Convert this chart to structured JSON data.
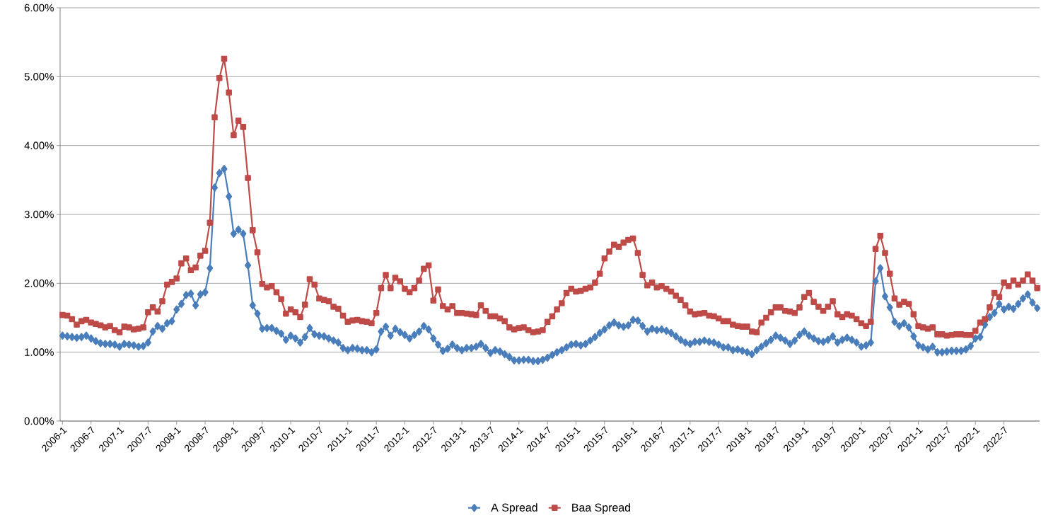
{
  "chart_data": {
    "type": "line",
    "categories": [
      "2006-1",
      null,
      null,
      null,
      null,
      null,
      "2006-7",
      null,
      null,
      null,
      null,
      null,
      "2007-1",
      null,
      null,
      null,
      null,
      null,
      "2007-7",
      null,
      null,
      null,
      null,
      null,
      "2008-1",
      null,
      null,
      null,
      null,
      null,
      "2008-7",
      null,
      null,
      null,
      null,
      null,
      "2009-1",
      null,
      null,
      null,
      null,
      null,
      "2009-7",
      null,
      null,
      null,
      null,
      null,
      "2010-1",
      null,
      null,
      null,
      null,
      null,
      "2010-7",
      null,
      null,
      null,
      null,
      null,
      "2011-1",
      null,
      null,
      null,
      null,
      null,
      "2011-7",
      null,
      null,
      null,
      null,
      null,
      "2012-1",
      null,
      null,
      null,
      null,
      null,
      "2012-7",
      null,
      null,
      null,
      null,
      null,
      "2013-1",
      null,
      null,
      null,
      null,
      null,
      "2013-7",
      null,
      null,
      null,
      null,
      null,
      "2014-1",
      null,
      null,
      null,
      null,
      null,
      "2014-7",
      null,
      null,
      null,
      null,
      null,
      "2015-1",
      null,
      null,
      null,
      null,
      null,
      "2015-7",
      null,
      null,
      null,
      null,
      null,
      "2016-1",
      null,
      null,
      null,
      null,
      null,
      "2016-7",
      null,
      null,
      null,
      null,
      null,
      "2017-1",
      null,
      null,
      null,
      null,
      null,
      "2017-7",
      null,
      null,
      null,
      null,
      null,
      "2018-1",
      null,
      null,
      null,
      null,
      null,
      "2018-7",
      null,
      null,
      null,
      null,
      null,
      "2019-1",
      null,
      null,
      null,
      null,
      null,
      "2019-7",
      null,
      null,
      null,
      null,
      null,
      "2020-1",
      null,
      null,
      null,
      null,
      null,
      "2020-7",
      null,
      null,
      null,
      null,
      null,
      "2021-1",
      null,
      null,
      null,
      null,
      null,
      "2021-7",
      null,
      null,
      null,
      null,
      null,
      "2022-1",
      null,
      null,
      null,
      null,
      null,
      "2022-7",
      null,
      null,
      null,
      null,
      null,
      null,
      null
    ],
    "series": [
      {
        "name": "A Spread",
        "color": "#4a7ebb",
        "marker": "diamond",
        "values": [
          1.24,
          1.23,
          1.22,
          1.21,
          1.22,
          1.24,
          1.2,
          1.16,
          1.13,
          1.12,
          1.12,
          1.11,
          1.08,
          1.12,
          1.11,
          1.1,
          1.08,
          1.09,
          1.14,
          1.3,
          1.38,
          1.34,
          1.42,
          1.45,
          1.62,
          1.7,
          1.83,
          1.85,
          1.68,
          1.84,
          1.87,
          2.22,
          3.39,
          3.6,
          3.66,
          3.26,
          2.72,
          2.78,
          2.72,
          2.26,
          1.68,
          1.56,
          1.34,
          1.35,
          1.35,
          1.31,
          1.27,
          1.18,
          1.24,
          1.2,
          1.14,
          1.22,
          1.35,
          1.26,
          1.24,
          1.23,
          1.2,
          1.17,
          1.14,
          1.06,
          1.03,
          1.06,
          1.05,
          1.03,
          1.03,
          1.0,
          1.04,
          1.3,
          1.37,
          1.24,
          1.34,
          1.29,
          1.25,
          1.2,
          1.25,
          1.3,
          1.38,
          1.33,
          1.2,
          1.11,
          1.02,
          1.05,
          1.11,
          1.06,
          1.03,
          1.06,
          1.06,
          1.08,
          1.12,
          1.06,
          0.99,
          1.03,
          1.01,
          0.97,
          0.93,
          0.88,
          0.88,
          0.89,
          0.89,
          0.87,
          0.87,
          0.89,
          0.92,
          0.96,
          1.0,
          1.03,
          1.07,
          1.11,
          1.12,
          1.1,
          1.12,
          1.17,
          1.22,
          1.28,
          1.33,
          1.39,
          1.43,
          1.39,
          1.37,
          1.39,
          1.47,
          1.46,
          1.38,
          1.3,
          1.34,
          1.32,
          1.33,
          1.31,
          1.28,
          1.23,
          1.18,
          1.14,
          1.12,
          1.15,
          1.15,
          1.17,
          1.15,
          1.14,
          1.11,
          1.07,
          1.07,
          1.03,
          1.04,
          1.02,
          1.0,
          0.97,
          1.03,
          1.08,
          1.13,
          1.18,
          1.24,
          1.21,
          1.17,
          1.12,
          1.17,
          1.25,
          1.3,
          1.24,
          1.2,
          1.16,
          1.15,
          1.18,
          1.23,
          1.14,
          1.18,
          1.21,
          1.18,
          1.14,
          1.08,
          1.1,
          1.14,
          2.03,
          2.22,
          1.81,
          1.65,
          1.44,
          1.38,
          1.42,
          1.36,
          1.23,
          1.1,
          1.07,
          1.04,
          1.08,
          1.0,
          1.0,
          1.01,
          1.02,
          1.02,
          1.02,
          1.04,
          1.09,
          1.2,
          1.22,
          1.4,
          1.51,
          1.57,
          1.7,
          1.62,
          1.66,
          1.63,
          1.7,
          1.78,
          1.84,
          1.72,
          1.64
        ]
      },
      {
        "name": "Baa Spread",
        "color": "#be4b48",
        "marker": "square",
        "values": [
          1.54,
          1.53,
          1.48,
          1.4,
          1.45,
          1.47,
          1.43,
          1.41,
          1.39,
          1.36,
          1.38,
          1.32,
          1.29,
          1.37,
          1.36,
          1.33,
          1.34,
          1.36,
          1.58,
          1.65,
          1.59,
          1.74,
          1.98,
          2.02,
          2.07,
          2.29,
          2.36,
          2.19,
          2.23,
          2.4,
          2.47,
          2.88,
          4.41,
          4.98,
          5.26,
          4.77,
          4.15,
          4.36,
          4.27,
          3.53,
          2.77,
          2.45,
          1.99,
          1.94,
          1.96,
          1.87,
          1.77,
          1.56,
          1.62,
          1.58,
          1.51,
          1.69,
          2.06,
          1.98,
          1.78,
          1.76,
          1.74,
          1.66,
          1.63,
          1.53,
          1.44,
          1.46,
          1.47,
          1.45,
          1.44,
          1.42,
          1.57,
          1.93,
          2.12,
          1.93,
          2.08,
          2.03,
          1.92,
          1.87,
          1.93,
          2.04,
          2.21,
          2.26,
          1.75,
          1.91,
          1.67,
          1.62,
          1.67,
          1.57,
          1.57,
          1.56,
          1.55,
          1.54,
          1.68,
          1.6,
          1.52,
          1.52,
          1.49,
          1.45,
          1.36,
          1.33,
          1.35,
          1.36,
          1.32,
          1.29,
          1.3,
          1.32,
          1.44,
          1.52,
          1.62,
          1.71,
          1.86,
          1.92,
          1.88,
          1.89,
          1.92,
          1.94,
          2.01,
          2.14,
          2.36,
          2.46,
          2.56,
          2.53,
          2.59,
          2.63,
          2.65,
          2.44,
          2.12,
          1.97,
          2.01,
          1.94,
          1.96,
          1.92,
          1.88,
          1.82,
          1.76,
          1.68,
          1.59,
          1.55,
          1.56,
          1.57,
          1.53,
          1.52,
          1.49,
          1.45,
          1.45,
          1.4,
          1.38,
          1.37,
          1.37,
          1.3,
          1.29,
          1.43,
          1.5,
          1.58,
          1.65,
          1.65,
          1.6,
          1.59,
          1.57,
          1.65,
          1.8,
          1.86,
          1.73,
          1.66,
          1.6,
          1.66,
          1.74,
          1.55,
          1.51,
          1.55,
          1.53,
          1.48,
          1.42,
          1.38,
          1.44,
          2.5,
          2.69,
          2.44,
          2.14,
          1.78,
          1.69,
          1.73,
          1.7,
          1.55,
          1.38,
          1.36,
          1.34,
          1.36,
          1.26,
          1.26,
          1.24,
          1.25,
          1.26,
          1.26,
          1.25,
          1.25,
          1.31,
          1.43,
          1.48,
          1.65,
          1.86,
          1.8,
          2.01,
          1.96,
          2.04,
          1.98,
          2.04,
          2.13,
          2.04,
          1.93
        ]
      }
    ],
    "ylim": [
      0,
      6
    ],
    "yticks": [
      {
        "value": 0,
        "label": "0.00%"
      },
      {
        "value": 1,
        "label": "1.00%"
      },
      {
        "value": 2,
        "label": "2.00%"
      },
      {
        "value": 3,
        "label": "3.00%"
      },
      {
        "value": 4,
        "label": "4.00%"
      },
      {
        "value": 5,
        "label": "5.00%"
      },
      {
        "value": 6,
        "label": "6.00%"
      }
    ],
    "grid": "y",
    "legend": "bottom",
    "line_style": "solid"
  }
}
